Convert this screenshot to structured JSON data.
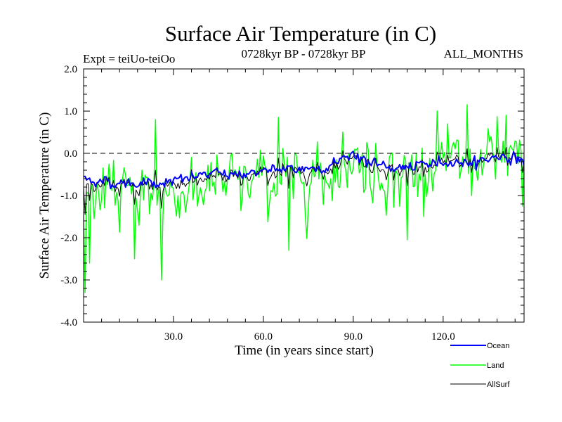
{
  "chart_data": {
    "type": "line",
    "title": "Surface Air Temperature (in C)",
    "subtitle_left": "Expt = teiUo-teiOo",
    "subtitle_center": "0728kyr BP - 0728kyr BP",
    "subtitle_right": "ALL_MONTHS",
    "xlabel": "Time (in years since start)",
    "ylabel": "Surface Air Temperature (in C)",
    "xlim": [
      0,
      147
    ],
    "ylim": [
      -4.0,
      2.0
    ],
    "xticks": [
      30,
      60,
      90,
      120
    ],
    "xtick_labels": [
      "30.0",
      "60.0",
      "90.0",
      "120.0"
    ],
    "yticks": [
      2.0,
      1.0,
      0.0,
      -1.0,
      -2.0,
      -3.0,
      -4.0
    ],
    "ytick_labels": [
      "2.0",
      "1.0",
      "0.0",
      "-1.0",
      "-2.0",
      "-3.0",
      "-4.0"
    ],
    "reference_line": 0.0,
    "x_step": 0.5,
    "trend_knots": {
      "x": [
        0,
        5,
        10,
        20,
        30,
        40,
        50,
        60,
        70,
        80,
        85,
        88,
        90,
        95,
        100,
        110,
        120,
        130,
        140,
        147
      ],
      "ocean": [
        -0.6,
        -0.65,
        -0.7,
        -0.7,
        -0.68,
        -0.5,
        -0.5,
        -0.42,
        -0.38,
        -0.32,
        -0.2,
        -0.05,
        0.02,
        -0.22,
        -0.32,
        -0.35,
        -0.18,
        -0.22,
        -0.04,
        -0.2
      ],
      "land": [
        -1.05,
        -1.05,
        -0.95,
        -0.95,
        -0.95,
        -0.8,
        -0.75,
        -0.65,
        -0.6,
        -0.5,
        -0.35,
        -0.15,
        -0.05,
        -0.4,
        -0.45,
        -0.5,
        -0.25,
        -0.25,
        -0.05,
        -0.3
      ],
      "allsurf": [
        -0.75,
        -0.75,
        -0.78,
        -0.78,
        -0.75,
        -0.6,
        -0.6,
        -0.5,
        -0.45,
        -0.38,
        -0.25,
        -0.08,
        -0.01,
        -0.28,
        -0.36,
        -0.4,
        -0.2,
        -0.23,
        -0.05,
        -0.25
      ]
    },
    "noise": {
      "ocean": 0.1,
      "land": 0.45,
      "allsurf": 0.18
    },
    "annotated_extremes": [
      {
        "series": "Land",
        "x": 0.5,
        "y": -3.3
      },
      {
        "series": "Land",
        "x": 2.0,
        "y": -2.6
      },
      {
        "series": "Land",
        "x": 17.0,
        "y": -2.5
      },
      {
        "series": "Land",
        "x": 24.0,
        "y": 0.8
      },
      {
        "series": "Land",
        "x": 26.0,
        "y": -3.0
      },
      {
        "series": "Land",
        "x": 65.0,
        "y": 0.85
      },
      {
        "series": "Land",
        "x": 68.5,
        "y": -2.3
      },
      {
        "series": "Land",
        "x": 108.0,
        "y": -2.05
      },
      {
        "series": "Land",
        "x": 118.0,
        "y": 1.0
      },
      {
        "series": "Land",
        "x": 128.0,
        "y": 1.15
      },
      {
        "series": "Land",
        "x": 141.0,
        "y": 0.9
      },
      {
        "series": "Land",
        "x": 146.5,
        "y": -1.25
      },
      {
        "series": "AllSurf",
        "x": 0.5,
        "y": -1.45
      }
    ],
    "series": [
      {
        "name": "Ocean",
        "color": "#0000ff",
        "width": 2.0
      },
      {
        "name": "Land",
        "color": "#00ff00",
        "width": 1.4
      },
      {
        "name": "AllSurf",
        "color": "#000000",
        "width": 1.0
      }
    ],
    "legend_placement": "bottom-right"
  }
}
